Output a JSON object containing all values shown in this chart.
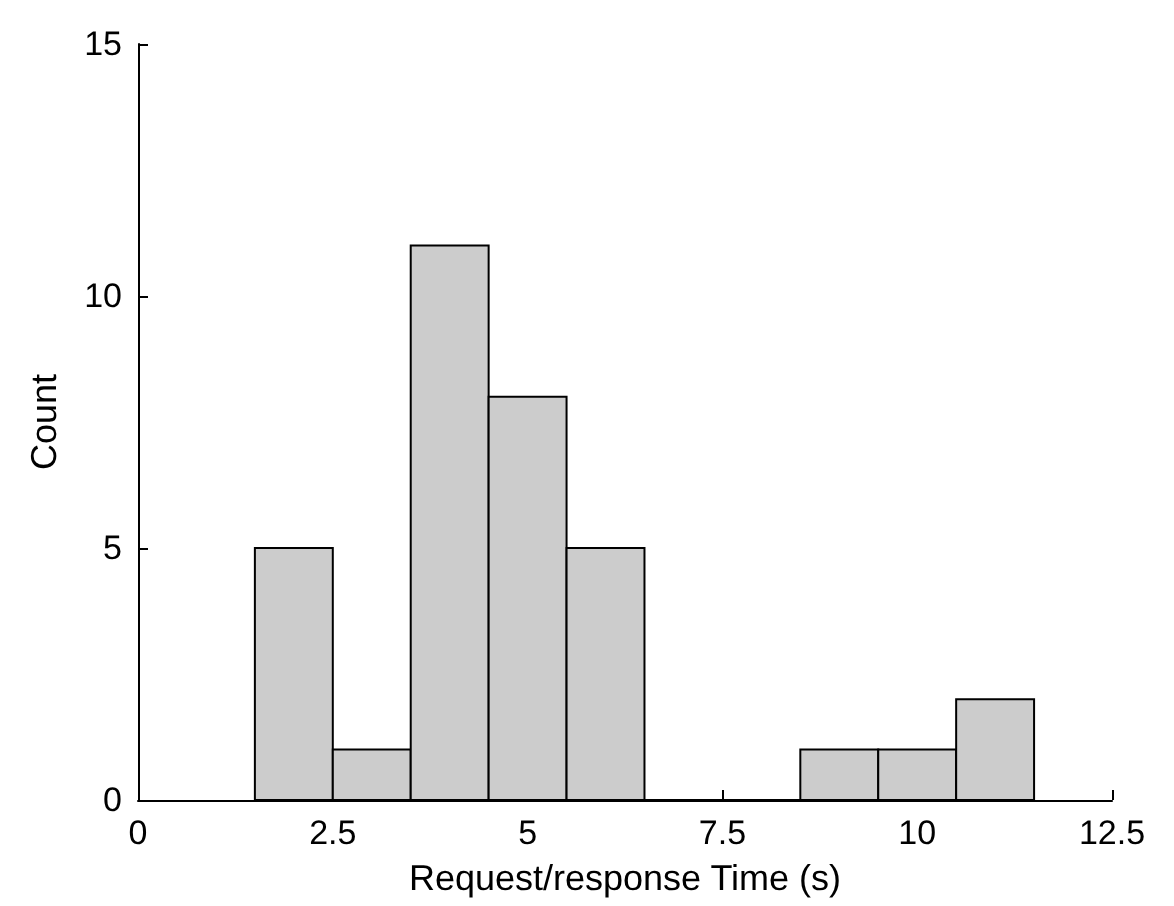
{
  "chart_data": {
    "type": "histogram",
    "xlabel": "Request/response Time (s)",
    "ylabel": "Count",
    "bins": [
      1.5,
      2.5,
      3.5,
      4.5,
      5.5,
      6.5,
      7.5,
      8.5,
      9.5,
      10.5,
      11.5
    ],
    "values": [
      5,
      1,
      11,
      8,
      5,
      0,
      0,
      1,
      1,
      2
    ],
    "color": "#cccccc",
    "xlim": [
      0,
      12.5
    ],
    "xticks": [
      0,
      2.5,
      5,
      7.5,
      10,
      12.5
    ],
    "ylim": [
      0,
      15
    ],
    "yticks": [
      0,
      5,
      10,
      15
    ],
    "grid": false
  }
}
